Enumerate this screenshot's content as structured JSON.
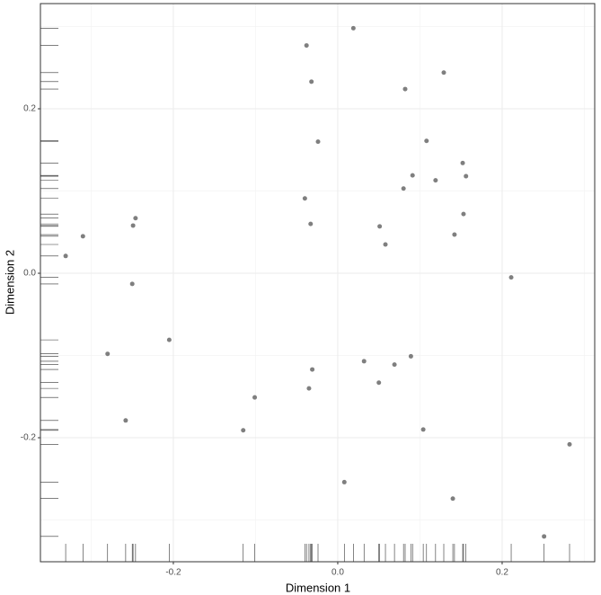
{
  "chart_data": {
    "type": "scatter",
    "x_label": "Dimension 1",
    "y_label": "Dimension 2",
    "x": [
      -0.331,
      -0.31,
      -0.28,
      -0.258,
      -0.25,
      -0.249,
      -0.246,
      -0.205,
      -0.115,
      -0.101,
      -0.038,
      -0.04,
      -0.032,
      -0.033,
      -0.031,
      -0.035,
      -0.024,
      0.008,
      0.019,
      0.032,
      0.05,
      0.051,
      0.058,
      0.069,
      0.08,
      0.082,
      0.089,
      0.091,
      0.104,
      0.108,
      0.119,
      0.129,
      0.14,
      0.142,
      0.152,
      0.153,
      0.156,
      0.211,
      0.251,
      0.282
    ],
    "values": [
      0.021,
      0.045,
      -0.098,
      -0.179,
      -0.013,
      0.058,
      0.067,
      -0.081,
      -0.191,
      -0.151,
      0.277,
      0.091,
      0.233,
      0.06,
      -0.117,
      -0.14,
      0.16,
      -0.254,
      0.298,
      -0.107,
      -0.133,
      0.057,
      0.035,
      -0.111,
      0.103,
      0.224,
      -0.101,
      0.119,
      -0.19,
      0.161,
      0.113,
      0.244,
      -0.274,
      0.047,
      0.134,
      0.072,
      0.118,
      -0.005,
      -0.32,
      -0.208
    ],
    "color": "#7f7f7f",
    "rug": true,
    "xlim": [
      -0.3617,
      0.3126
    ],
    "ylim": [
      -0.3508,
      0.3279
    ],
    "xticks": [
      -0.2,
      {
        "value": 0,
        "label": "0.0"
      },
      0.2
    ],
    "yticks": [
      -0.2,
      {
        "value": 0,
        "label": "0.0"
      },
      0.2
    ],
    "x_minor_grid": [
      -0.3,
      -0.1,
      0.1,
      0.3
    ],
    "y_minor_grid": [
      -0.3,
      -0.1,
      0.1,
      0.3
    ],
    "grid": true
  }
}
